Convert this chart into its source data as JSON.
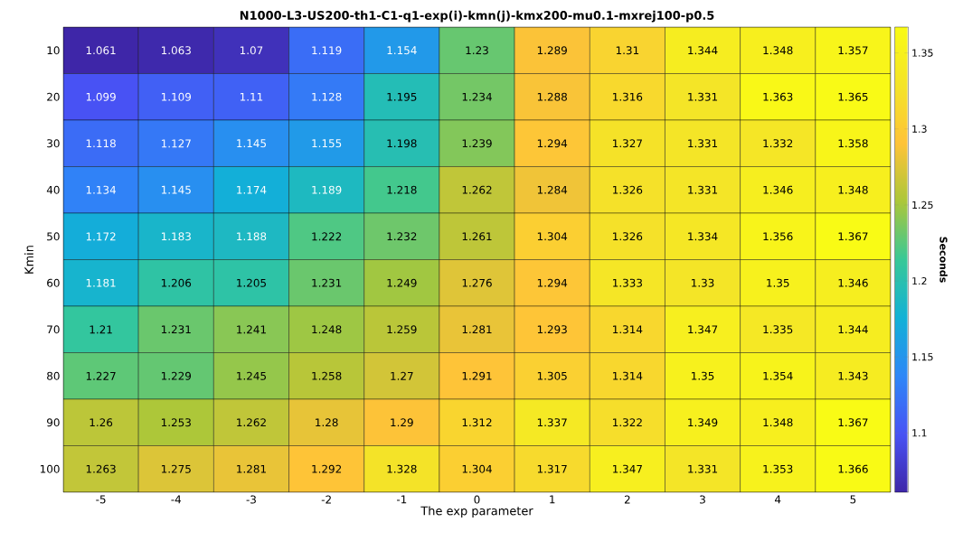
{
  "chart_data": {
    "type": "heatmap",
    "title": "N1000-L3-US200-th1-C1-q1-exp(i)-kmn(j)-kmx200-mu0.1-mxrej100-p0.5",
    "xlabel": "The exp parameter",
    "ylabel": "Kmin",
    "clabel": "Seconds",
    "categories": [
      "-5",
      "-4",
      "-3",
      "-2",
      "-1",
      "0",
      "1",
      "2",
      "3",
      "4",
      "5"
    ],
    "y_categories": [
      "10",
      "20",
      "30",
      "40",
      "50",
      "60",
      "70",
      "80",
      "90",
      "100"
    ],
    "cells": [
      [
        1.061,
        1.063,
        1.07,
        1.119,
        1.154,
        1.23,
        1.289,
        1.31,
        1.344,
        1.348,
        1.357
      ],
      [
        1.099,
        1.109,
        1.11,
        1.128,
        1.195,
        1.234,
        1.288,
        1.316,
        1.331,
        1.363,
        1.365
      ],
      [
        1.118,
        1.127,
        1.145,
        1.155,
        1.198,
        1.239,
        1.294,
        1.327,
        1.331,
        1.332,
        1.358
      ],
      [
        1.134,
        1.145,
        1.174,
        1.189,
        1.218,
        1.262,
        1.284,
        1.326,
        1.331,
        1.346,
        1.348
      ],
      [
        1.172,
        1.183,
        1.188,
        1.222,
        1.232,
        1.261,
        1.304,
        1.326,
        1.334,
        1.356,
        1.367
      ],
      [
        1.181,
        1.206,
        1.205,
        1.231,
        1.249,
        1.276,
        1.294,
        1.333,
        1.33,
        1.35,
        1.346
      ],
      [
        1.21,
        1.231,
        1.241,
        1.248,
        1.259,
        1.281,
        1.293,
        1.314,
        1.347,
        1.335,
        1.344
      ],
      [
        1.227,
        1.229,
        1.245,
        1.258,
        1.27,
        1.291,
        1.305,
        1.314,
        1.35,
        1.354,
        1.343
      ],
      [
        1.26,
        1.253,
        1.262,
        1.28,
        1.29,
        1.312,
        1.337,
        1.322,
        1.349,
        1.348,
        1.367
      ],
      [
        1.263,
        1.275,
        1.281,
        1.292,
        1.328,
        1.304,
        1.317,
        1.347,
        1.331,
        1.353,
        1.366
      ]
    ],
    "data_labels": true,
    "clim": [
      1.061,
      1.367
    ],
    "cticks": [
      1.1,
      1.15,
      1.2,
      1.25,
      1.3,
      1.35
    ]
  }
}
